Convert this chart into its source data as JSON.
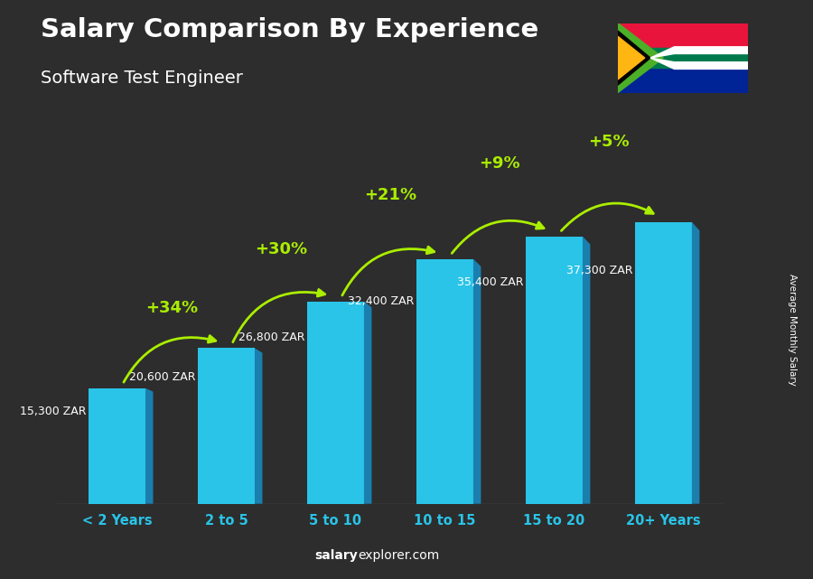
{
  "title": "Salary Comparison By Experience",
  "subtitle": "Software Test Engineer",
  "categories": [
    "< 2 Years",
    "2 to 5",
    "5 to 10",
    "10 to 15",
    "15 to 20",
    "20+ Years"
  ],
  "values": [
    15300,
    20600,
    26800,
    32400,
    35400,
    37300
  ],
  "value_labels": [
    "15,300 ZAR",
    "20,600 ZAR",
    "26,800 ZAR",
    "32,400 ZAR",
    "35,400 ZAR",
    "37,300 ZAR"
  ],
  "pct_labels": [
    "+34%",
    "+30%",
    "+21%",
    "+9%",
    "+5%"
  ],
  "bar_color_main": "#29C4E8",
  "bar_color_side": "#1A7FAF",
  "bar_color_top": "#7DEAFF",
  "background_color": "#2d2d2d",
  "text_color_white": "#FFFFFF",
  "text_color_green": "#AAEE00",
  "ylabel": "Average Monthly Salary",
  "footer_bold": "salary",
  "footer_normal": "explorer.com",
  "ylim": [
    0,
    46000
  ],
  "flag_colors": {
    "red": "#E8143C",
    "green_top": "#4CAF28",
    "green_band": "#007A4D",
    "blue": "#002395",
    "gold": "#FFB612",
    "white": "#FFFFFF",
    "black": "#000000"
  }
}
